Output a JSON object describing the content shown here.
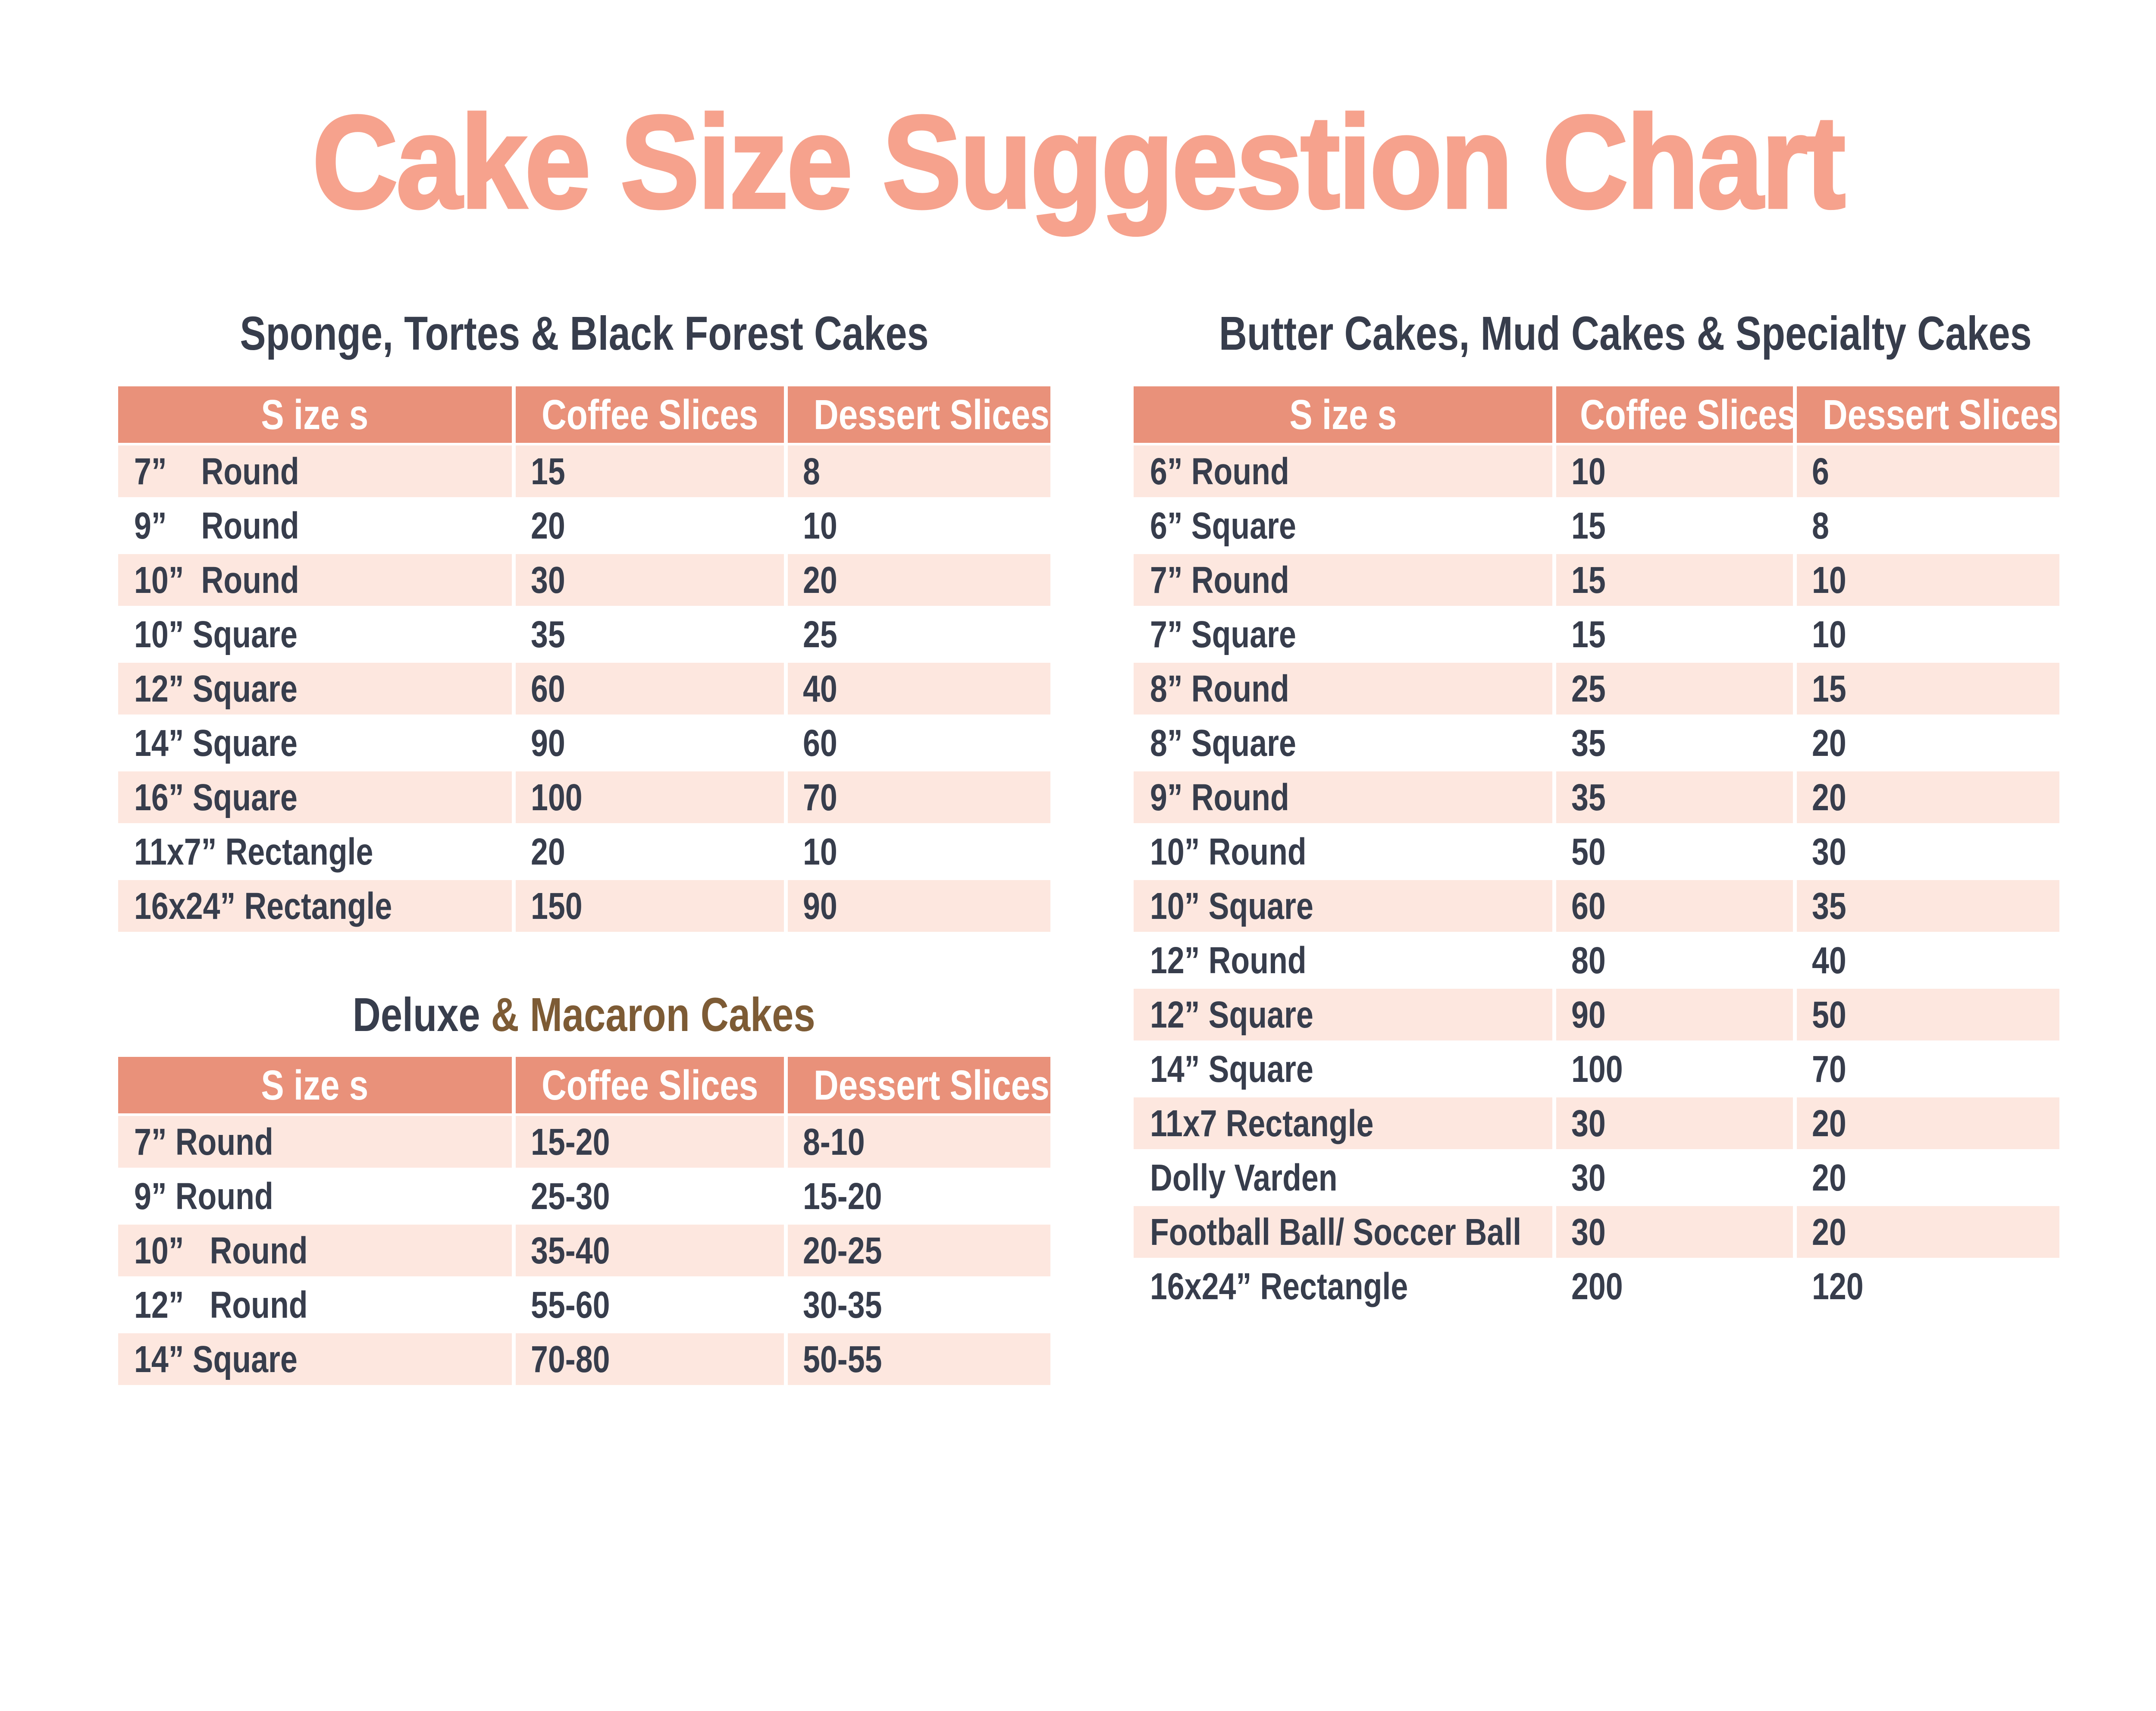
{
  "title": "Cake Size Suggestion Chart",
  "column_headers": [
    "S ize s",
    "Coffee Slices",
    "Dessert Slices"
  ],
  "sections": {
    "sponge": {
      "heading": "Sponge, Tortes & Black Forest Cakes",
      "rows": [
        [
          "7”    Round",
          "15",
          "8"
        ],
        [
          "9”    Round",
          "20",
          "10"
        ],
        [
          "10”  Round",
          "30",
          "20"
        ],
        [
          "10” Square",
          "35",
          "25"
        ],
        [
          "12” Square",
          "60",
          "40"
        ],
        [
          "14” Square",
          "90",
          "60"
        ],
        [
          "16” Square",
          "100",
          "70"
        ],
        [
          "11x7” Rectangle",
          "20",
          "10"
        ],
        [
          "16x24” Rectangle",
          "150",
          "90"
        ]
      ]
    },
    "deluxe": {
      "heading_primary": "Deluxe",
      "heading_secondary": "& Macaron Cakes",
      "rows": [
        [
          "7” Round",
          "15-20",
          "8-10"
        ],
        [
          "9” Round",
          "25-30",
          "15-20"
        ],
        [
          "10”   Round",
          "35-40",
          "20-25"
        ],
        [
          "12”   Round",
          "55-60",
          "30-35"
        ],
        [
          "14” Square",
          "70-80",
          "50-55"
        ]
      ]
    },
    "butter": {
      "heading": "Butter Cakes, Mud Cakes & Specialty Cakes",
      "rows": [
        [
          "6” Round",
          "10",
          "6"
        ],
        [
          "6” Square",
          "15",
          "8"
        ],
        [
          "7” Round",
          "15",
          "10"
        ],
        [
          "7” Square",
          "15",
          "10"
        ],
        [
          "8” Round",
          "25",
          "15"
        ],
        [
          "8” Square",
          "35",
          "20"
        ],
        [
          "9” Round",
          "35",
          "20"
        ],
        [
          "10” Round",
          "50",
          "30"
        ],
        [
          "10” Square",
          "60",
          "35"
        ],
        [
          "12” Round",
          "80",
          "40"
        ],
        [
          "12” Square",
          "90",
          "50"
        ],
        [
          "14” Square",
          "100",
          "70"
        ],
        [
          "11x7 Rectangle",
          "30",
          "20"
        ],
        [
          "Dolly Varden",
          "30",
          "20"
        ],
        [
          "Football Ball/ Soccer Ball",
          "30",
          "20"
        ],
        [
          "16x24” Rectangle",
          "200",
          "120"
        ]
      ]
    }
  },
  "colors": {
    "title_coral": "#F6A28D",
    "header_salmon": "#E9917A",
    "row_pink": "#FDE7DF",
    "row_white": "#FFFFFF",
    "text_navy": "#373D4C",
    "heading_brown": "#7D5B35",
    "header_text_white": "#FFFFFF"
  }
}
